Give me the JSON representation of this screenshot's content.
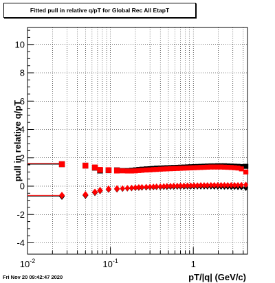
{
  "title": "Fitted pull in relative q/pT for Global Rec All EtapT",
  "timestamp": "Fri Nov 20 09:42:47 2020",
  "chart_data": {
    "type": "scatter",
    "title": "Fitted pull in relative q/pT for Global Rec All EtapT",
    "xlabel": "pT/|q| (GeV/c)",
    "ylabel": "pull in relative q/pT",
    "x_scale": "log",
    "xlim": [
      0.01,
      4.5
    ],
    "ylim": [
      -4.8,
      11.2
    ],
    "grid": true,
    "x_ticks": [
      {
        "value": 0.01,
        "label": "10^-2"
      },
      {
        "value": 0.1,
        "label": "10^-1"
      },
      {
        "value": 1,
        "label": "1"
      }
    ],
    "y_ticks": [
      {
        "value": -4,
        "label": "-4"
      },
      {
        "value": -2,
        "label": "-2"
      },
      {
        "value": 0,
        "label": "0"
      },
      {
        "value": 2,
        "label": "2"
      },
      {
        "value": 4,
        "label": "4"
      },
      {
        "value": 6,
        "label": "6"
      },
      {
        "value": 8,
        "label": "8"
      },
      {
        "value": 10,
        "label": "10"
      }
    ],
    "series": [
      {
        "marker": "square",
        "color": "#000000",
        "x": [
          0.026,
          0.05,
          0.065,
          0.075,
          0.095,
          0.12,
          0.14,
          0.16,
          0.18,
          0.2,
          0.22,
          0.24,
          0.27,
          0.3,
          0.33,
          0.36,
          0.4,
          0.44,
          0.48,
          0.53,
          0.58,
          0.64,
          0.7,
          0.77,
          0.85,
          0.93,
          1.02,
          1.12,
          1.23,
          1.35,
          1.48,
          1.63,
          1.79,
          1.97,
          2.16,
          2.37,
          2.6,
          2.86,
          3.14,
          3.45,
          3.8,
          4.3
        ],
        "y": [
          1.55,
          1.45,
          1.3,
          1.1,
          1.12,
          1.12,
          1.1,
          1.1,
          1.12,
          1.15,
          1.18,
          1.2,
          1.22,
          1.23,
          1.25,
          1.27,
          1.28,
          1.29,
          1.3,
          1.31,
          1.32,
          1.33,
          1.34,
          1.35,
          1.36,
          1.37,
          1.38,
          1.39,
          1.4,
          1.41,
          1.42,
          1.43,
          1.43,
          1.44,
          1.44,
          1.44,
          1.43,
          1.42,
          1.41,
          1.4,
          1.38,
          1.4
        ]
      },
      {
        "marker": "diamond",
        "color": "#000000",
        "x": [
          0.026,
          0.05,
          0.065,
          0.075,
          0.095,
          0.12,
          0.14,
          0.16,
          0.18,
          0.2,
          0.22,
          0.24,
          0.27,
          0.3,
          0.33,
          0.36,
          0.4,
          0.44,
          0.48,
          0.53,
          0.58,
          0.64,
          0.7,
          0.77,
          0.85,
          0.93,
          1.02,
          1.12,
          1.23,
          1.35,
          1.48,
          1.63,
          1.79,
          1.97,
          2.16,
          2.37,
          2.6,
          2.86,
          3.14,
          3.45,
          3.8,
          4.3
        ],
        "y": [
          -0.72,
          -0.65,
          -0.45,
          -0.32,
          -0.22,
          -0.2,
          -0.18,
          -0.16,
          -0.14,
          -0.12,
          -0.11,
          -0.1,
          -0.09,
          -0.08,
          -0.07,
          -0.06,
          -0.06,
          -0.05,
          -0.05,
          -0.04,
          -0.04,
          -0.03,
          -0.03,
          -0.03,
          -0.02,
          -0.02,
          -0.02,
          -0.02,
          -0.02,
          -0.02,
          -0.02,
          -0.02,
          -0.03,
          -0.03,
          -0.03,
          -0.04,
          -0.04,
          -0.05,
          -0.05,
          -0.06,
          -0.07,
          -0.12
        ]
      },
      {
        "marker": "square",
        "color": "#ff0000",
        "x": [
          0.026,
          0.05,
          0.065,
          0.075,
          0.095,
          0.12,
          0.14,
          0.16,
          0.18,
          0.2,
          0.22,
          0.24,
          0.27,
          0.3,
          0.33,
          0.36,
          0.4,
          0.44,
          0.48,
          0.53,
          0.58,
          0.64,
          0.7,
          0.77,
          0.85,
          0.93,
          1.02,
          1.12,
          1.23,
          1.35,
          1.48,
          1.63,
          1.79,
          1.97,
          2.16,
          2.37,
          2.6,
          2.86,
          3.14,
          3.45,
          3.8,
          4.3
        ],
        "y": [
          1.55,
          1.45,
          1.32,
          1.15,
          1.13,
          1.1,
          1.08,
          1.07,
          1.07,
          1.08,
          1.1,
          1.12,
          1.14,
          1.15,
          1.17,
          1.18,
          1.2,
          1.21,
          1.22,
          1.23,
          1.24,
          1.25,
          1.26,
          1.27,
          1.28,
          1.29,
          1.3,
          1.31,
          1.32,
          1.33,
          1.34,
          1.35,
          1.35,
          1.35,
          1.35,
          1.34,
          1.33,
          1.32,
          1.3,
          1.28,
          1.22,
          1.0
        ]
      },
      {
        "marker": "diamond",
        "color": "#ff0000",
        "x": [
          0.026,
          0.05,
          0.065,
          0.075,
          0.095,
          0.12,
          0.14,
          0.16,
          0.18,
          0.2,
          0.22,
          0.24,
          0.27,
          0.3,
          0.33,
          0.36,
          0.4,
          0.44,
          0.48,
          0.53,
          0.58,
          0.64,
          0.7,
          0.77,
          0.85,
          0.93,
          1.02,
          1.12,
          1.23,
          1.35,
          1.48,
          1.63,
          1.79,
          1.97,
          2.16,
          2.37,
          2.6,
          2.86,
          3.14,
          3.45,
          3.8,
          4.3
        ],
        "y": [
          -0.65,
          -0.6,
          -0.42,
          -0.3,
          -0.2,
          -0.18,
          -0.16,
          -0.14,
          -0.12,
          -0.1,
          -0.08,
          -0.07,
          -0.06,
          -0.05,
          -0.04,
          -0.03,
          -0.02,
          -0.01,
          0.0,
          0.01,
          0.02,
          0.02,
          0.03,
          0.03,
          0.04,
          0.04,
          0.05,
          0.05,
          0.06,
          0.06,
          0.06,
          0.07,
          0.07,
          0.07,
          0.07,
          0.07,
          0.07,
          0.07,
          0.07,
          0.07,
          0.08,
          0.1
        ]
      }
    ],
    "fit_lines": [
      {
        "color": "#000000",
        "y": 1.55,
        "x_from": 0.01,
        "x_to": 0.026
      },
      {
        "color": "#ff0000",
        "y": 1.6,
        "x_from": 0.01,
        "x_to": 0.026
      },
      {
        "color": "#000000",
        "y": -0.72,
        "x_from": 0.01,
        "x_to": 0.026
      },
      {
        "color": "#ff0000",
        "y": -0.65,
        "x_from": 0.01,
        "x_to": 0.026
      }
    ]
  }
}
